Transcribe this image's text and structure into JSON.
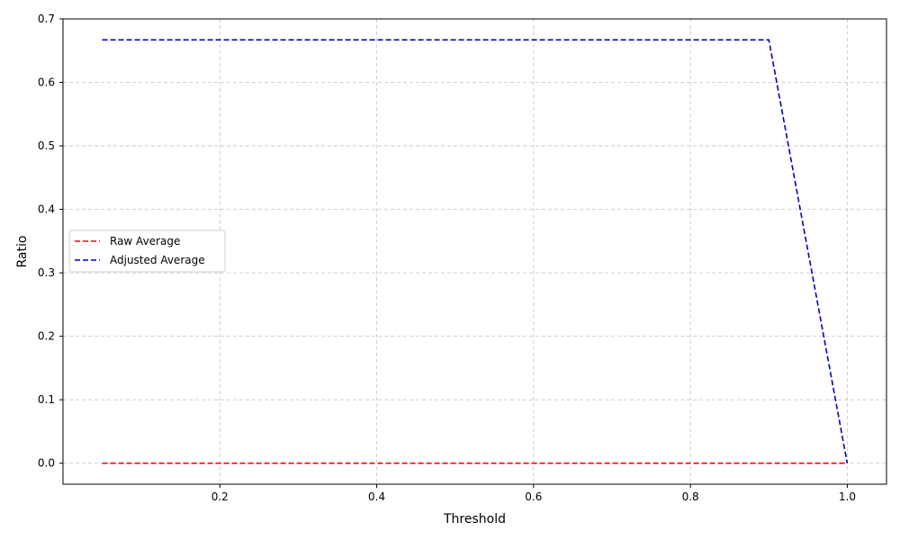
{
  "chart_data": {
    "type": "line",
    "title": "",
    "xlabel": "Threshold",
    "ylabel": "Ratio",
    "xlim": [
      0.0,
      1.05
    ],
    "ylim": [
      -0.033,
      0.7
    ],
    "xticks": [
      0.2,
      0.4,
      0.6,
      0.8,
      1.0
    ],
    "xtick_labels": [
      "0.2",
      "0.4",
      "0.6",
      "0.8",
      "1.0"
    ],
    "yticks": [
      0.0,
      0.1,
      0.2,
      0.3,
      0.4,
      0.5,
      0.6,
      0.7
    ],
    "ytick_labels": [
      "0.0",
      "0.1",
      "0.2",
      "0.3",
      "0.4",
      "0.5",
      "0.6",
      "0.7"
    ],
    "grid": true,
    "legend_position": "center-left",
    "series": [
      {
        "name": "Raw Average",
        "color": "#ff0000",
        "linestyle": "dashed",
        "x": [
          0.05,
          0.1,
          0.15,
          0.2,
          0.25,
          0.3,
          0.35,
          0.4,
          0.45,
          0.5,
          0.55,
          0.6,
          0.65,
          0.7,
          0.75,
          0.8,
          0.85,
          0.9,
          0.95,
          1.0
        ],
        "y": [
          0,
          0,
          0,
          0,
          0,
          0,
          0,
          0,
          0,
          0,
          0,
          0,
          0,
          0,
          0,
          0,
          0,
          0,
          0,
          0
        ]
      },
      {
        "name": "Adjusted Average",
        "color": "#0000cc",
        "linestyle": "dashed",
        "x": [
          0.05,
          0.1,
          0.15,
          0.2,
          0.25,
          0.3,
          0.35,
          0.4,
          0.45,
          0.5,
          0.55,
          0.6,
          0.65,
          0.7,
          0.75,
          0.8,
          0.85,
          0.9,
          0.95,
          1.0
        ],
        "y": [
          0.667,
          0.667,
          0.667,
          0.667,
          0.667,
          0.667,
          0.667,
          0.667,
          0.667,
          0.667,
          0.667,
          0.667,
          0.667,
          0.667,
          0.667,
          0.667,
          0.667,
          0.667,
          0.333,
          0.0
        ]
      }
    ]
  }
}
